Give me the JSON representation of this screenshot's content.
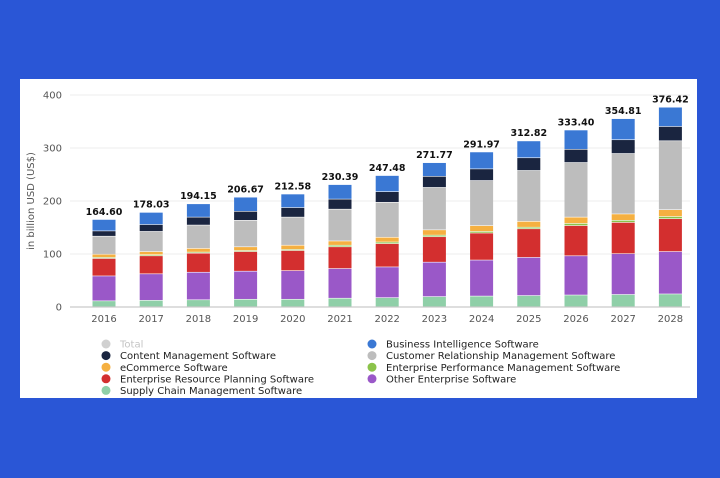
{
  "chart_data": {
    "type": "bar",
    "stacked": true,
    "ylabel": "in billion USD (US$)",
    "ylim": [
      0,
      400
    ],
    "yticks": [
      0,
      100,
      200,
      300,
      400
    ],
    "grid": true,
    "legend_position": "bottom",
    "categories": [
      "2016",
      "2017",
      "2018",
      "2019",
      "2020",
      "2021",
      "2022",
      "2023",
      "2024",
      "2025",
      "2026",
      "2027",
      "2028"
    ],
    "totals": [
      164.6,
      178.03,
      194.15,
      206.67,
      212.58,
      230.39,
      247.48,
      271.77,
      291.97,
      312.82,
      333.4,
      354.81,
      376.42
    ],
    "total_labels": [
      "164.60",
      "178.03",
      "194.15",
      "206.67",
      "212.58",
      "230.39",
      "247.48",
      "271.77",
      "291.97",
      "312.82",
      "333.40",
      "354.81",
      "376.42"
    ],
    "total_legend": {
      "name": "Total",
      "color": "#d0d0d0"
    },
    "series": [
      {
        "name": "Supply Chain Management Software",
        "color": "#8fcfa8",
        "values": [
          11,
          12,
          13,
          14,
          14,
          16,
          17,
          19,
          20,
          21,
          22,
          23,
          24
        ]
      },
      {
        "name": "Other Enterprise Software",
        "color": "#9a58c8",
        "values": [
          47,
          50,
          52,
          53,
          54,
          56,
          58,
          65,
          68,
          72,
          74,
          77,
          80
        ]
      },
      {
        "name": "Enterprise Resource Planning Software",
        "color": "#d32f2f",
        "values": [
          33,
          34,
          36,
          37,
          38,
          41,
          44,
          48,
          51,
          54,
          57,
          59,
          62
        ]
      },
      {
        "name": "Enterprise Performance Management Software",
        "color": "#8bc34a",
        "values": [
          2,
          2,
          2,
          2,
          2,
          3,
          3,
          3,
          3,
          3,
          4,
          4,
          4
        ]
      },
      {
        "name": "eCommerce Software",
        "color": "#f5b041",
        "values": [
          6,
          6,
          7,
          7,
          8,
          8,
          9,
          10,
          11,
          11,
          12,
          12,
          13
        ]
      },
      {
        "name": "Customer Relationship Management Software",
        "color": "#bdbdbd",
        "values": [
          34,
          38,
          44,
          50,
          53,
          60,
          66,
          80,
          85,
          96,
          103,
          114,
          130
        ]
      },
      {
        "name": "Content Management Software",
        "color": "#1a2540",
        "values": [
          10,
          13,
          15,
          17,
          18,
          19,
          20,
          21,
          22,
          24,
          25,
          26,
          27
        ]
      },
      {
        "name": "Business Intelligence Software",
        "color": "#3a78d4",
        "values": [
          21.6,
          23.03,
          25.15,
          26.67,
          25.58,
          27.39,
          30.48,
          25.77,
          31.97,
          31.82,
          36.4,
          39.81,
          36.42
        ]
      }
    ],
    "legend": [
      {
        "name": "Total",
        "color": "#d0d0d0",
        "muted": true
      },
      {
        "name": "Business Intelligence Software",
        "color": "#3a78d4"
      },
      {
        "name": "Content Management Software",
        "color": "#1a2540"
      },
      {
        "name": "Customer Relationship Management Software",
        "color": "#bdbdbd"
      },
      {
        "name": "eCommerce Software",
        "color": "#f5b041"
      },
      {
        "name": "Enterprise Performance Management Software",
        "color": "#8bc34a"
      },
      {
        "name": "Enterprise Resource Planning Software",
        "color": "#d32f2f"
      },
      {
        "name": "Other Enterprise Software",
        "color": "#9a58c8"
      },
      {
        "name": "Supply Chain Management Software",
        "color": "#8fcfa8"
      }
    ]
  }
}
